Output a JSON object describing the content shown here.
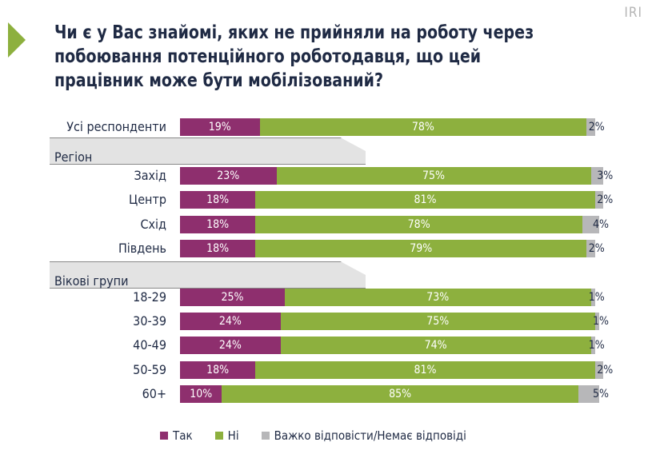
{
  "logo": "IRI",
  "chart_data": {
    "type": "bar",
    "orientation": "horizontal-stacked-100",
    "title": "Чи є у Вас знайомі, яких не прийняли на роботу через побоювання потенційного роботодавця, що цей працівник може бути мобілізований?",
    "groups": [
      "Регіон",
      "Вікові групи"
    ],
    "categories": [
      "Усі респонденти",
      "Захід",
      "Центр",
      "Схід",
      "Південь",
      "18-29",
      "30-39",
      "40-49",
      "50-59",
      "60+"
    ],
    "category_group": [
      null,
      "Регіон",
      "Регіон",
      "Регіон",
      "Регіон",
      "Вікові групи",
      "Вікові групи",
      "Вікові групи",
      "Вікові групи",
      "Вікові групи"
    ],
    "series": [
      {
        "name": "Так",
        "color": "#8e2f6e",
        "values": [
          19,
          23,
          18,
          18,
          18,
          25,
          24,
          24,
          18,
          10
        ]
      },
      {
        "name": "Ні",
        "color": "#8db03e",
        "values": [
          78,
          75,
          81,
          78,
          79,
          73,
          75,
          74,
          81,
          85
        ]
      },
      {
        "name": "Важко відповісти/Немає відповіді",
        "color": "#b7b7b9",
        "values": [
          2,
          3,
          2,
          4,
          2,
          1,
          1,
          1,
          2,
          5
        ]
      }
    ],
    "unit": "%",
    "legend": "bottom"
  }
}
